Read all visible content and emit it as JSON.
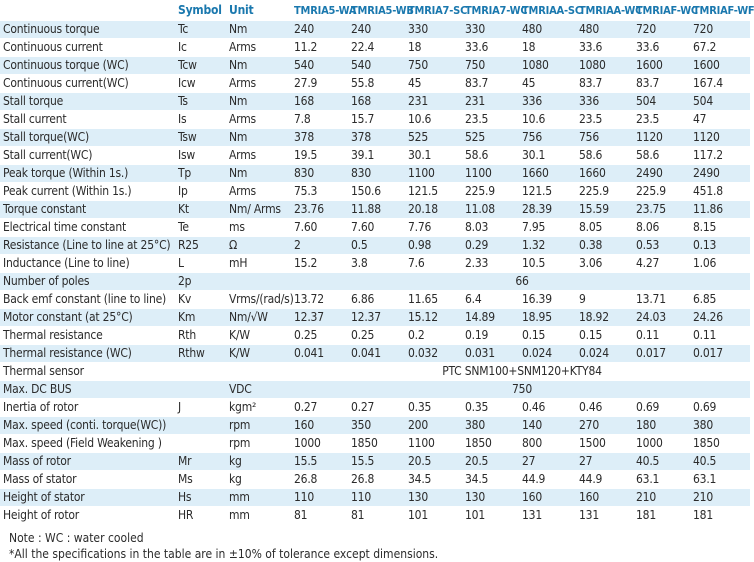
{
  "header": {
    "symbol": "Symbol",
    "unit": "Unit",
    "models": [
      "TMRIA5-WA",
      "TMRIA5-WB",
      "TMRIA7-SC",
      "TMRIA7-WC",
      "TMRIAA-SC",
      "TMRIAA-WC",
      "TMRIAF-WC",
      "TMRIAF-WF"
    ]
  },
  "rows": [
    {
      "param": "Continuous torque",
      "symbol": "Tc",
      "unit": "Nm",
      "values": [
        "240",
        "240",
        "330",
        "330",
        "480",
        "480",
        "720",
        "720"
      ]
    },
    {
      "param": "Continuous current",
      "symbol": "Ic",
      "unit": "Arms",
      "values": [
        "11.2",
        "22.4",
        "18",
        "33.6",
        "18",
        "33.6",
        "33.6",
        "67.2"
      ]
    },
    {
      "param": "Continuous torque (WC)",
      "symbol": "Tcw",
      "unit": "Nm",
      "values": [
        "540",
        "540",
        "750",
        "750",
        "1080",
        "1080",
        "1600",
        "1600"
      ]
    },
    {
      "param": "Continuous current(WC)",
      "symbol": "Icw",
      "unit": "Arms",
      "values": [
        "27.9",
        "55.8",
        "45",
        "83.7",
        "45",
        "83.7",
        "83.7",
        "167.4"
      ]
    },
    {
      "param": "Stall torque",
      "symbol": "Ts",
      "unit": "Nm",
      "values": [
        "168",
        "168",
        "231",
        "231",
        "336",
        "336",
        "504",
        "504"
      ]
    },
    {
      "param": "Stall current",
      "symbol": "Is",
      "unit": "Arms",
      "values": [
        "7.8",
        "15.7",
        "10.6",
        "23.5",
        "10.6",
        "23.5",
        "23.5",
        "47"
      ]
    },
    {
      "param": "Stall torque(WC)",
      "symbol": "Tsw",
      "unit": "Nm",
      "values": [
        "378",
        "378",
        "525",
        "525",
        "756",
        "756",
        "1120",
        "1120"
      ]
    },
    {
      "param": "Stall current(WC)",
      "symbol": "Isw",
      "unit": "Arms",
      "values": [
        "19.5",
        "39.1",
        "30.1",
        "58.6",
        "30.1",
        "58.6",
        "58.6",
        "117.2"
      ]
    },
    {
      "param": "Peak torque (Within 1s.)",
      "symbol": "Tp",
      "unit": "Nm",
      "values": [
        "830",
        "830",
        "1100",
        "1100",
        "1660",
        "1660",
        "2490",
        "2490"
      ]
    },
    {
      "param": "Peak current (Within 1s.)",
      "symbol": "Ip",
      "unit": "Arms",
      "values": [
        "75.3",
        "150.6",
        "121.5",
        "225.9",
        "121.5",
        "225.9",
        "225.9",
        "451.8"
      ]
    },
    {
      "param": "Torque constant",
      "symbol": "Kt",
      "unit": "Nm/ Arms",
      "values": [
        "23.76",
        "11.88",
        "20.18",
        "11.08",
        "28.39",
        "15.59",
        "23.75",
        "11.86"
      ]
    },
    {
      "param": "Electrical time constant",
      "symbol": "Te",
      "unit": "ms",
      "values": [
        "7.60",
        "7.60",
        "7.76",
        "8.03",
        "7.95",
        "8.05",
        "8.06",
        "8.15"
      ]
    },
    {
      "param": "Resistance (Line to line at 25°C)",
      "symbol": "R25",
      "unit": "Ω",
      "values": [
        "2",
        "0.5",
        "0.98",
        "0.29",
        "1.32",
        "0.38",
        "0.53",
        "0.13"
      ]
    },
    {
      "param": "Inductance (Line to line)",
      "symbol": "L",
      "unit": "mH",
      "values": [
        "15.2",
        "3.8",
        "7.6",
        "2.33",
        "10.5",
        "3.06",
        "4.27",
        "1.06"
      ]
    },
    {
      "param": "Number of poles",
      "symbol": "2p",
      "unit": "",
      "span": "66"
    },
    {
      "param": "Back emf constant (line to line)",
      "symbol": "Kv",
      "unit": "Vrms/(rad/s)",
      "values": [
        "13.72",
        "6.86",
        "11.65",
        "6.4",
        "16.39",
        "9",
        "13.71",
        "6.85"
      ]
    },
    {
      "param": "Motor constant (at 25°C)",
      "symbol": "Km",
      "unit": "Nm/√W",
      "values": [
        "12.37",
        "12.37",
        "15.12",
        "14.89",
        "18.95",
        "18.92",
        "24.03",
        "24.26"
      ]
    },
    {
      "param": "Thermal resistance",
      "symbol": "Rth",
      "unit": "K/W",
      "values": [
        "0.25",
        "0.25",
        "0.2",
        "0.19",
        "0.15",
        "0.15",
        "0.11",
        "0.11"
      ]
    },
    {
      "param": "Thermal resistance (WC)",
      "symbol": "Rthw",
      "unit": "K/W",
      "values": [
        "0.041",
        "0.041",
        "0.032",
        "0.031",
        "0.024",
        "0.024",
        "0.017",
        "0.017"
      ]
    },
    {
      "param": "Thermal sensor",
      "symbol": "",
      "unit": "",
      "span": "PTC SNM100+SNM120+KTY84"
    },
    {
      "param": "Max. DC BUS",
      "symbol": "",
      "unit": "VDC",
      "span": "750"
    },
    {
      "param": "Inertia of rotor",
      "symbol": "J",
      "unit": "kgm²",
      "values": [
        "0.27",
        "0.27",
        "0.35",
        "0.35",
        "0.46",
        "0.46",
        "0.69",
        "0.69"
      ]
    },
    {
      "param": "Max. speed (conti. torque(WC))",
      "symbol": "",
      "unit": "rpm",
      "values": [
        "160",
        "350",
        "200",
        "380",
        "140",
        "270",
        "180",
        "380"
      ]
    },
    {
      "param": "Max. speed (Field Weakening )",
      "symbol": "",
      "unit": "rpm",
      "values": [
        "1000",
        "1850",
        "1100",
        "1850",
        "800",
        "1500",
        "1000",
        "1850"
      ]
    },
    {
      "param": "Mass of rotor",
      "symbol": "Mr",
      "unit": "kg",
      "values": [
        "15.5",
        "15.5",
        "20.5",
        "20.5",
        "27",
        "27",
        "40.5",
        "40.5"
      ]
    },
    {
      "param": "Mass of stator",
      "symbol": "Ms",
      "unit": "kg",
      "values": [
        "26.8",
        "26.8",
        "34.5",
        "34.5",
        "44.9",
        "44.9",
        "63.1",
        "63.1"
      ]
    },
    {
      "param": "Height of stator",
      "symbol": "Hs",
      "unit": "mm",
      "values": [
        "110",
        "110",
        "130",
        "130",
        "160",
        "160",
        "210",
        "210"
      ]
    },
    {
      "param": "Height of rotor",
      "symbol": "HR",
      "unit": "mm",
      "values": [
        "81",
        "81",
        "101",
        "101",
        "131",
        "131",
        "181",
        "181"
      ]
    }
  ],
  "notes": {
    "line1": "Note : WC : water cooled",
    "line2": "*All the specifications in the table are in ±10% of tolerance except dimensions."
  }
}
